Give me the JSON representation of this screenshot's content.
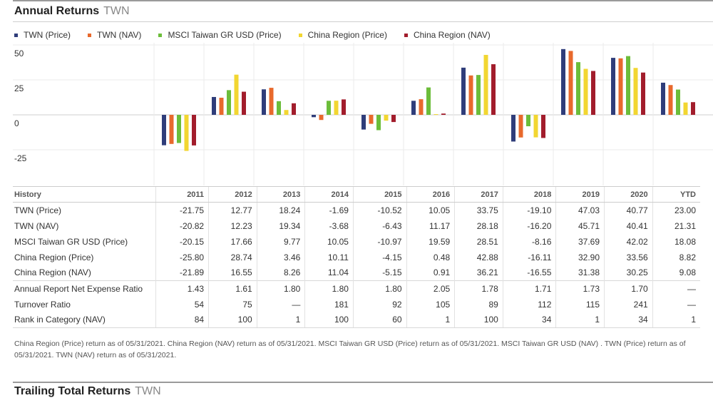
{
  "header": {
    "title": "Annual Returns",
    "ticker": "TWN"
  },
  "colors": {
    "TWN (Price)": "#2f3d7a",
    "TWN (NAV)": "#e8692c",
    "MSCI Taiwan GR USD (Price)": "#6cbd3a",
    "China Region (Price)": "#f2d631",
    "China Region (NAV)": "#a21d2c"
  },
  "chart_data": {
    "type": "bar",
    "categories": [
      "2011",
      "2012",
      "2013",
      "2014",
      "2015",
      "2016",
      "2017",
      "2018",
      "2019",
      "2020",
      "YTD"
    ],
    "series": [
      {
        "name": "TWN (Price)",
        "values": [
          -21.75,
          12.77,
          18.24,
          -1.69,
          -10.52,
          10.05,
          33.75,
          -19.1,
          47.03,
          40.77,
          23.0
        ]
      },
      {
        "name": "TWN (NAV)",
        "values": [
          -20.82,
          12.23,
          19.34,
          -3.68,
          -6.43,
          11.17,
          28.18,
          -16.2,
          45.71,
          40.41,
          21.31
        ]
      },
      {
        "name": "MSCI Taiwan GR USD (Price)",
        "values": [
          -20.15,
          17.66,
          9.77,
          10.05,
          -10.97,
          19.59,
          28.51,
          -8.16,
          37.69,
          42.02,
          18.08
        ]
      },
      {
        "name": "China Region (Price)",
        "values": [
          -25.8,
          28.74,
          3.46,
          10.11,
          -4.15,
          0.48,
          42.88,
          -16.11,
          32.9,
          33.56,
          8.82
        ]
      },
      {
        "name": "China Region (NAV)",
        "values": [
          -21.89,
          16.55,
          8.26,
          11.04,
          -5.15,
          0.91,
          36.21,
          -16.55,
          31.38,
          30.25,
          9.08
        ]
      }
    ],
    "yticks": [
      "50",
      "25",
      "0",
      "-25"
    ],
    "ytick_values": [
      50,
      25,
      0,
      -25
    ],
    "ylim": [
      -50,
      50
    ],
    "legend": "top"
  },
  "history": {
    "header_label": "History",
    "years": [
      "2011",
      "2012",
      "2013",
      "2014",
      "2015",
      "2016",
      "2017",
      "2018",
      "2019",
      "2020",
      "YTD"
    ],
    "rows": [
      {
        "label": "TWN (Price)",
        "values": [
          "-21.75",
          "12.77",
          "18.24",
          "-1.69",
          "-10.52",
          "10.05",
          "33.75",
          "-19.10",
          "47.03",
          "40.77",
          "23.00"
        ]
      },
      {
        "label": "TWN (NAV)",
        "values": [
          "-20.82",
          "12.23",
          "19.34",
          "-3.68",
          "-6.43",
          "11.17",
          "28.18",
          "-16.20",
          "45.71",
          "40.41",
          "21.31"
        ]
      },
      {
        "label": "MSCI Taiwan GR USD (Price)",
        "values": [
          "-20.15",
          "17.66",
          "9.77",
          "10.05",
          "-10.97",
          "19.59",
          "28.51",
          "-8.16",
          "37.69",
          "42.02",
          "18.08"
        ]
      },
      {
        "label": "China Region (Price)",
        "values": [
          "-25.80",
          "28.74",
          "3.46",
          "10.11",
          "-4.15",
          "0.48",
          "42.88",
          "-16.11",
          "32.90",
          "33.56",
          "8.82"
        ]
      },
      {
        "label": "China Region (NAV)",
        "values": [
          "-21.89",
          "16.55",
          "8.26",
          "11.04",
          "-5.15",
          "0.91",
          "36.21",
          "-16.55",
          "31.38",
          "30.25",
          "9.08"
        ]
      },
      {
        "label": "Annual Report Net Expense Ratio",
        "values": [
          "1.43",
          "1.61",
          "1.80",
          "1.80",
          "1.80",
          "2.05",
          "1.78",
          "1.71",
          "1.73",
          "1.70",
          "—"
        ]
      },
      {
        "label": "Turnover Ratio",
        "values": [
          "54",
          "75",
          "—",
          "181",
          "92",
          "105",
          "89",
          "112",
          "115",
          "241",
          "—"
        ]
      },
      {
        "label": "Rank in Category (NAV)",
        "values": [
          "84",
          "100",
          "1",
          "100",
          "60",
          "1",
          "100",
          "34",
          "1",
          "34",
          "1"
        ]
      }
    ]
  },
  "footnote": "China Region (Price) return as of 05/31/2021.  China Region (NAV) return as of 05/31/2021.  MSCI Taiwan GR USD (Price) return as of 05/31/2021.  MSCI Taiwan GR USD (NAV) .  TWN (Price) return as of 05/31/2021.  TWN (NAV) return as of 05/31/2021.",
  "next_section": {
    "title": "Trailing Total Returns",
    "ticker": "TWN"
  }
}
